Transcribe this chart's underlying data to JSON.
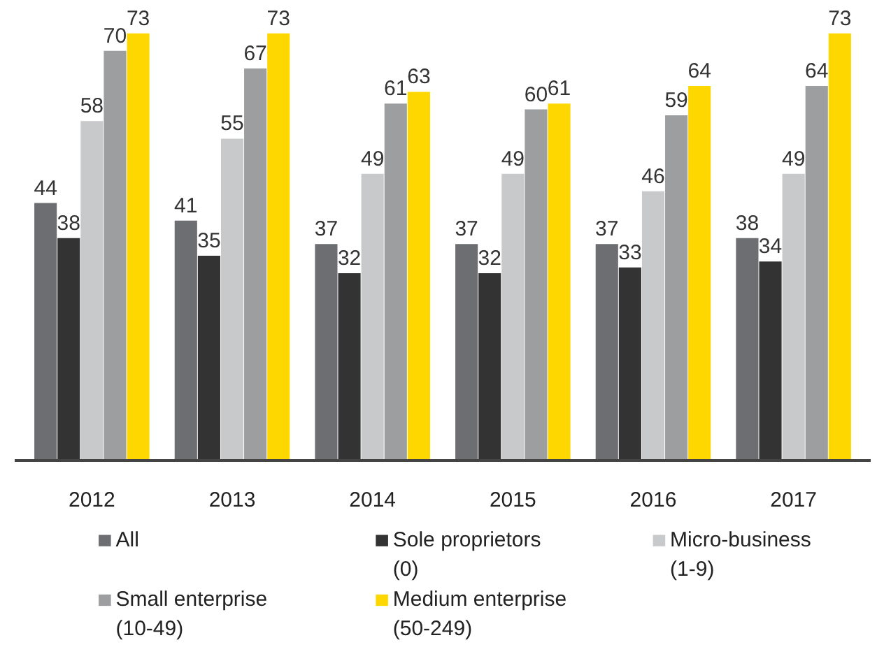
{
  "chart_data": {
    "type": "bar",
    "categories": [
      "2012",
      "2013",
      "2014",
      "2015",
      "2016",
      "2017"
    ],
    "series": [
      {
        "name": "All",
        "color": "#6d6e71",
        "values": [
          44,
          41,
          37,
          37,
          37,
          38
        ]
      },
      {
        "name": "Sole proprietors\n(0)",
        "color": "#333333",
        "values": [
          38,
          35,
          32,
          32,
          33,
          34
        ]
      },
      {
        "name": "Micro-business\n(1-9)",
        "color": "#c8c9cb",
        "values": [
          58,
          55,
          49,
          49,
          46,
          49
        ]
      },
      {
        "name": "Small enterprise\n(10-49)",
        "color": "#9d9ea0",
        "values": [
          70,
          67,
          61,
          60,
          59,
          64
        ]
      },
      {
        "name": "Medium enterprise\n(50-249)",
        "color": "#ffd700",
        "values": [
          73,
          73,
          63,
          61,
          64,
          73
        ]
      }
    ],
    "tick_labels": "x",
    "data_labels": true,
    "grid": false,
    "legend": "bottom"
  }
}
